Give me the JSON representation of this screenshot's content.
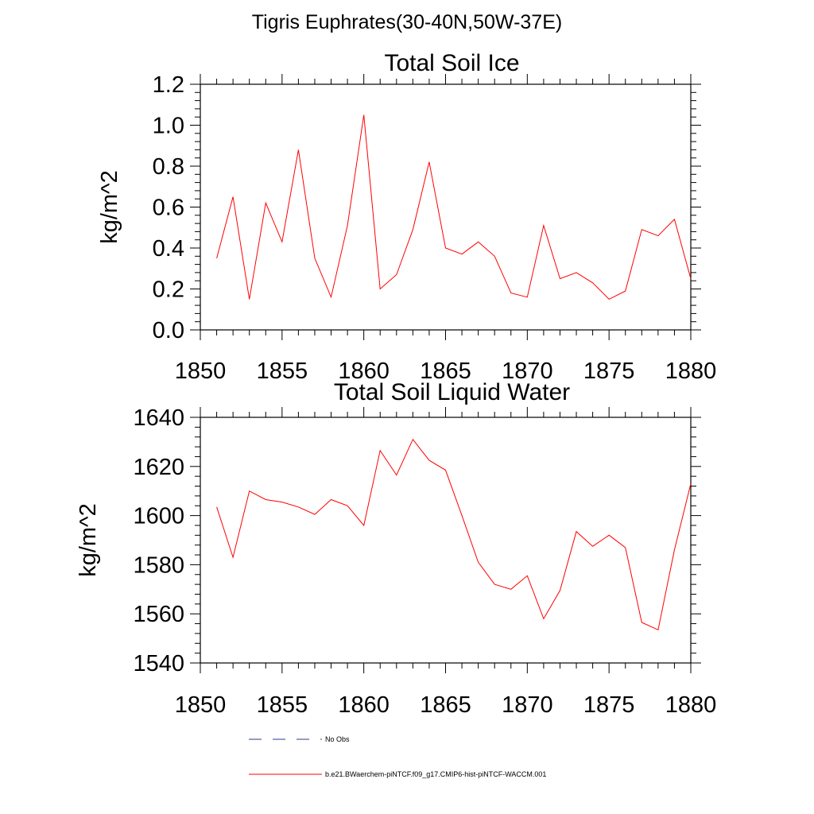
{
  "figure": {
    "title": "Tigris Euphrates(30-40N,50W-37E)"
  },
  "legend": {
    "entries": [
      {
        "label": "No Obs",
        "color": "#2a3a8c",
        "style": "dashed"
      },
      {
        "label": "b.e21.BWaerchem-piNTCF.f09_g17.CMIP6-hist-piNTCF-WACCM.001",
        "color": "#ff0000",
        "style": "solid"
      }
    ]
  },
  "chart_data": [
    {
      "type": "line",
      "title": "Total Soil Ice",
      "xlabel": "",
      "ylabel": "kg/m^2",
      "xlim": [
        1850,
        1880
      ],
      "ylim": [
        0.0,
        1.2
      ],
      "xticks": [
        "1850",
        "1855",
        "1860",
        "1865",
        "1870",
        "1875",
        "1880"
      ],
      "yticks": [
        "0.0",
        "0.2",
        "0.4",
        "0.6",
        "0.8",
        "1.0",
        "1.2"
      ],
      "grid": false,
      "series": [
        {
          "name": "b.e21.BWaerchem-piNTCF.f09_g17.CMIP6-hist-piNTCF-WACCM.001",
          "color": "#ff0000",
          "x": [
            1851,
            1852,
            1853,
            1854,
            1855,
            1856,
            1857,
            1858,
            1859,
            1860,
            1861,
            1862,
            1863,
            1864,
            1865,
            1866,
            1867,
            1868,
            1869,
            1870,
            1871,
            1872,
            1873,
            1874,
            1875,
            1876,
            1877,
            1878,
            1879,
            1880
          ],
          "values": [
            0.35,
            0.65,
            0.15,
            0.62,
            0.43,
            0.88,
            0.35,
            0.16,
            0.51,
            1.05,
            0.2,
            0.27,
            0.49,
            0.82,
            0.4,
            0.37,
            0.43,
            0.36,
            0.18,
            0.16,
            0.51,
            0.25,
            0.28,
            0.23,
            0.15,
            0.19,
            0.49,
            0.46,
            0.54,
            0.25
          ]
        }
      ]
    },
    {
      "type": "line",
      "title": "Total Soil Liquid Water",
      "xlabel": "",
      "ylabel": "kg/m^2",
      "xlim": [
        1850,
        1880
      ],
      "ylim": [
        1540,
        1640
      ],
      "xticks": [
        "1850",
        "1855",
        "1860",
        "1865",
        "1870",
        "1875",
        "1880"
      ],
      "yticks": [
        "1540",
        "1560",
        "1580",
        "1600",
        "1620",
        "1640"
      ],
      "grid": false,
      "series": [
        {
          "name": "b.e21.BWaerchem-piNTCF.f09_g17.CMIP6-hist-piNTCF-WACCM.001",
          "color": "#ff0000",
          "x": [
            1851,
            1852,
            1853,
            1854,
            1855,
            1856,
            1857,
            1858,
            1859,
            1860,
            1861,
            1862,
            1863,
            1864,
            1865,
            1866,
            1867,
            1868,
            1869,
            1870,
            1871,
            1872,
            1873,
            1874,
            1875,
            1876,
            1877,
            1878,
            1879,
            1880
          ],
          "values": [
            1603.5,
            1583,
            1610,
            1606.5,
            1605.5,
            1603.5,
            1600.5,
            1606.5,
            1604,
            1596,
            1626.5,
            1616.5,
            1631,
            1622.5,
            1618.5,
            1600,
            1581,
            1572,
            1570,
            1575.5,
            1558,
            1569.5,
            1593.5,
            1587.5,
            1592,
            1587,
            1556.5,
            1553.5,
            1586,
            1613
          ]
        }
      ]
    }
  ]
}
